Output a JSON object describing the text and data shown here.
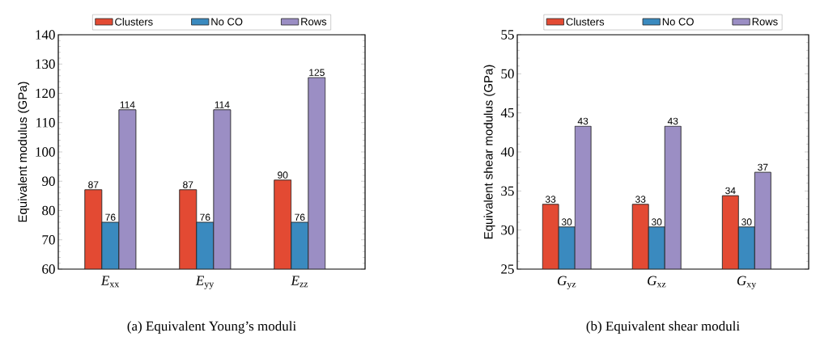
{
  "chart_data": [
    {
      "type": "bar",
      "title": "(a) Equivalent Young’s moduli",
      "ylabel": "Equivalent modulus (GPa)",
      "categories": [
        "*E*$_{xx}$",
        "*E*$_{yy}$",
        "*E*$_{zz}$"
      ],
      "series": [
        {
          "name": "Clusters",
          "color": "#e34a33",
          "values": [
            87.1,
            87.1,
            90.4
          ],
          "value_labels": [
            "87",
            "87",
            "90"
          ]
        },
        {
          "name": "No CO",
          "color": "#3a8abf",
          "values": [
            76.0,
            76.0,
            76.0
          ],
          "value_labels": [
            "76",
            "76",
            "76"
          ]
        },
        {
          "name": "Rows",
          "color": "#9b8ec4",
          "values": [
            114.4,
            114.4,
            125.4
          ],
          "value_labels": [
            "114",
            "114",
            "125"
          ]
        }
      ],
      "ylim": [
        60,
        140
      ],
      "yticks": [
        60,
        70,
        80,
        90,
        100,
        110,
        120,
        130,
        140
      ],
      "legend": "top"
    },
    {
      "type": "bar",
      "title": "(b) Equivalent shear moduli",
      "ylabel": "Equivalent shear modulus (GPa)",
      "categories": [
        "*G*$_{yz}$",
        "*G*$_{xz}$",
        "*G*$_{xy}$"
      ],
      "series": [
        {
          "name": "Clusters",
          "color": "#e34a33",
          "values": [
            33.3,
            33.3,
            34.4
          ],
          "value_labels": [
            "33",
            "33",
            "34"
          ]
        },
        {
          "name": "No CO",
          "color": "#3a8abf",
          "values": [
            30.4,
            30.4,
            30.4
          ],
          "value_labels": [
            "30",
            "30",
            "30"
          ]
        },
        {
          "name": "Rows",
          "color": "#9b8ec4",
          "values": [
            43.3,
            43.3,
            37.4
          ],
          "value_labels": [
            "43",
            "43",
            "37"
          ]
        }
      ],
      "ylim": [
        25,
        55
      ],
      "yticks": [
        25,
        30,
        35,
        40,
        45,
        50,
        55
      ],
      "legend": "top"
    }
  ]
}
